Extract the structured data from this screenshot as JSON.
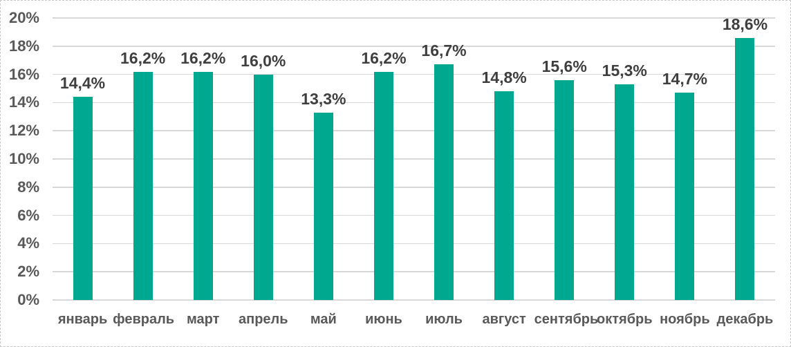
{
  "chart_data": {
    "type": "bar",
    "title": "",
    "xlabel": "",
    "ylabel": "",
    "categories": [
      "январь",
      "февраль",
      "март",
      "апрель",
      "май",
      "июнь",
      "июль",
      "август",
      "сентябрь",
      "октябрь",
      "ноябрь",
      "декабрь"
    ],
    "values": [
      14.4,
      16.2,
      16.2,
      16.0,
      13.3,
      16.2,
      16.7,
      14.8,
      15.6,
      15.3,
      14.7,
      18.6
    ],
    "data_labels": [
      "14,4%",
      "16,2%",
      "16,2%",
      "16,0%",
      "13,3%",
      "16,2%",
      "16,7%",
      "14,8%",
      "15,6%",
      "15,3%",
      "14,7%",
      "18,6%"
    ],
    "ylim": [
      0,
      20
    ],
    "yticks": [
      0,
      2,
      4,
      6,
      8,
      10,
      12,
      14,
      16,
      18,
      20
    ],
    "ytick_labels": [
      "0%",
      "2%",
      "4%",
      "6%",
      "8%",
      "10%",
      "12%",
      "14%",
      "16%",
      "18%",
      "20%"
    ],
    "grid": true,
    "legend": false,
    "colors": {
      "bar": "#00A88F",
      "gridline": "#D8D8D8",
      "axis_text": "#595959",
      "data_label": "#3F3F3F",
      "chart_border": "#C6C6C6",
      "background": "#FFFFFF"
    }
  }
}
